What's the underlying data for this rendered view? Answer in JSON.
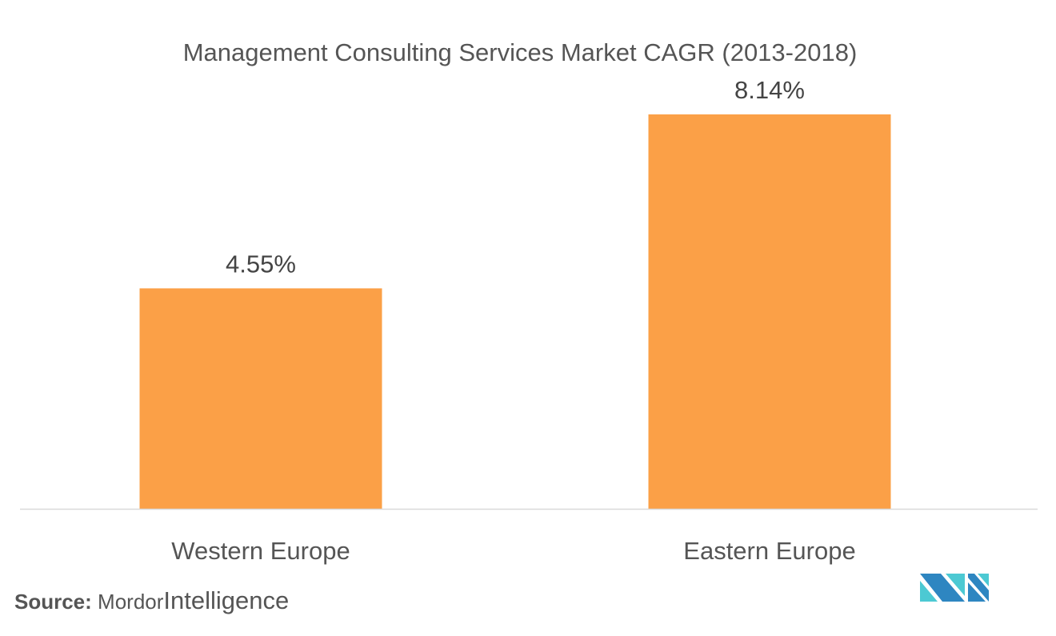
{
  "chart_data": {
    "type": "bar",
    "title": "Management Consulting Services Market CAGR (2013-2018)",
    "categories": [
      "Western Europe",
      "Eastern Europe"
    ],
    "values": [
      4.55,
      8.14
    ],
    "data_labels": [
      "4.55%",
      "8.14%"
    ],
    "xlabel": "",
    "ylabel": "",
    "ylim": [
      0,
      8.14
    ],
    "grid": false,
    "bar_color": "#FBA047",
    "axis_color": "#D9D9D9"
  },
  "source": {
    "label": "Source:",
    "name1": "Mordor",
    "name2": "Intelligence"
  },
  "logo": {
    "text": "MI",
    "colors": [
      "#2E86C1",
      "#4CC9D3"
    ]
  }
}
